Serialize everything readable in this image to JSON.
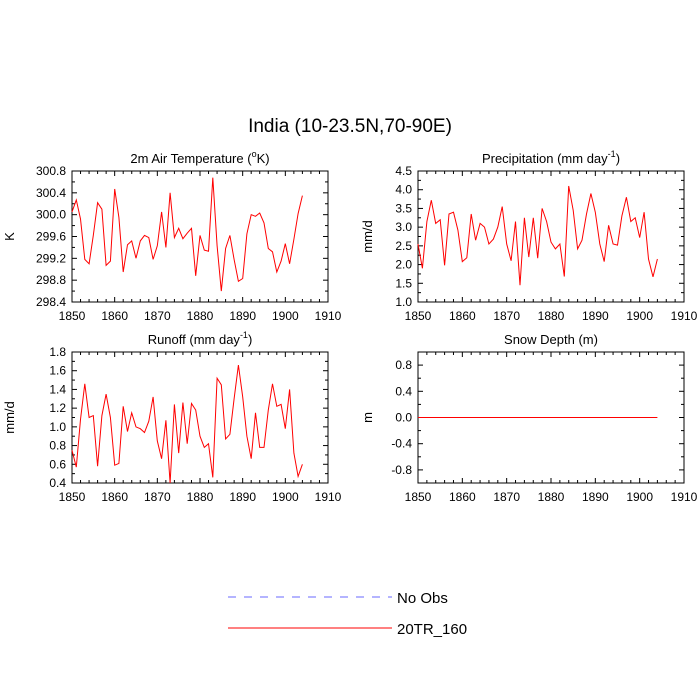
{
  "page": {
    "title": "India (10-23.5N,70-90E)"
  },
  "legend": {
    "items": [
      {
        "label": "No Obs",
        "color": "#6a6aff",
        "style": "dashed"
      },
      {
        "label": "20TR_160",
        "color": "#ff0000",
        "style": "solid"
      }
    ]
  },
  "chart_data": [
    {
      "type": "line",
      "title": "2m Air Temperature (°K)",
      "title_main": "2m Air Temperature (",
      "title_sup": "o",
      "title_end": "K)",
      "xlabel": "",
      "ylabel": "K",
      "xlim": [
        1850,
        1910
      ],
      "ylim": [
        298.4,
        300.8
      ],
      "xticks": [
        1850,
        1860,
        1870,
        1880,
        1890,
        1900,
        1910
      ],
      "yticks": [
        298.4,
        298.8,
        299.2,
        299.6,
        300.0,
        300.4,
        300.8
      ],
      "ytick_labels": [
        "298.4",
        "298.8",
        "299.2",
        "299.6",
        "300.0",
        "300.4",
        "300.8"
      ],
      "series": [
        {
          "name": "20TR_160",
          "color": "#ff0000",
          "x_start": 1850,
          "values": [
            300.05,
            300.27,
            299.92,
            299.18,
            299.1,
            299.62,
            300.22,
            300.1,
            299.07,
            299.15,
            300.47,
            299.95,
            298.95,
            299.45,
            299.52,
            299.2,
            299.52,
            299.62,
            299.58,
            299.18,
            299.43,
            300.05,
            299.4,
            300.4,
            299.58,
            299.75,
            299.56,
            299.66,
            299.75,
            298.88,
            299.62,
            299.35,
            299.33,
            300.68,
            299.43,
            298.6,
            299.38,
            299.62,
            299.18,
            298.78,
            298.83,
            299.65,
            300.0,
            299.97,
            300.03,
            299.85,
            299.38,
            299.32,
            298.95,
            299.15,
            299.47,
            299.1,
            299.55,
            300.02,
            300.35
          ]
        }
      ]
    },
    {
      "type": "line",
      "title": "Precipitation (mm day⁻¹)",
      "title_main": "Precipitation (mm day",
      "title_sup": "-1",
      "title_end": ")",
      "xlabel": "",
      "ylabel": "mm/d",
      "xlim": [
        1850,
        1910
      ],
      "ylim": [
        1.0,
        4.5
      ],
      "xticks": [
        1850,
        1860,
        1870,
        1880,
        1890,
        1900,
        1910
      ],
      "yticks": [
        1.0,
        1.5,
        2.0,
        2.5,
        3.0,
        3.5,
        4.0,
        4.5
      ],
      "ytick_labels": [
        "1.0",
        "1.5",
        "2.0",
        "2.5",
        "3.0",
        "3.5",
        "4.0",
        "4.5"
      ],
      "series": [
        {
          "name": "20TR_160",
          "color": "#ff0000",
          "x_start": 1850,
          "values": [
            2.55,
            1.9,
            3.15,
            3.72,
            3.1,
            3.2,
            1.98,
            3.35,
            3.4,
            2.92,
            2.08,
            2.18,
            3.35,
            2.65,
            3.1,
            3.0,
            2.55,
            2.68,
            3.0,
            3.55,
            2.55,
            2.1,
            3.15,
            1.45,
            3.25,
            2.2,
            3.25,
            2.17,
            3.5,
            3.15,
            2.6,
            2.42,
            2.55,
            1.68,
            4.1,
            3.45,
            2.42,
            2.65,
            3.35,
            3.9,
            3.4,
            2.55,
            2.08,
            3.05,
            2.55,
            2.52,
            3.3,
            3.8,
            3.15,
            3.25,
            2.72,
            3.4,
            2.15,
            1.67,
            2.15
          ]
        }
      ]
    },
    {
      "type": "line",
      "title": "Runoff (mm day⁻¹)",
      "title_main": "Runoff (mm day",
      "title_sup": "-1",
      "title_end": ")",
      "xlabel": "",
      "ylabel": "mm/d",
      "xlim": [
        1850,
        1910
      ],
      "ylim": [
        0.4,
        1.8
      ],
      "xticks": [
        1850,
        1860,
        1870,
        1880,
        1890,
        1900,
        1910
      ],
      "yticks": [
        0.4,
        0.6,
        0.8,
        1.0,
        1.2,
        1.4,
        1.6,
        1.8
      ],
      "ytick_labels": [
        "0.4",
        "0.6",
        "0.8",
        "1.0",
        "1.2",
        "1.4",
        "1.6",
        "1.8"
      ],
      "series": [
        {
          "name": "20TR_160",
          "color": "#ff0000",
          "x_start": 1850,
          "values": [
            0.75,
            0.57,
            1.08,
            1.46,
            1.1,
            1.12,
            0.58,
            1.12,
            1.35,
            1.1,
            0.59,
            0.61,
            1.22,
            0.95,
            1.15,
            1.0,
            0.98,
            0.94,
            1.06,
            1.32,
            0.85,
            0.66,
            1.07,
            0.4,
            1.24,
            0.72,
            1.26,
            0.82,
            1.25,
            1.18,
            0.9,
            0.78,
            0.82,
            0.46,
            1.52,
            1.45,
            0.87,
            0.92,
            1.3,
            1.66,
            1.32,
            0.9,
            0.66,
            1.15,
            0.78,
            0.78,
            1.18,
            1.46,
            1.22,
            1.24,
            0.98,
            1.4,
            0.72,
            0.47,
            0.6
          ]
        }
      ]
    },
    {
      "type": "line",
      "title": "Snow Depth (m)",
      "title_main": "Snow Depth (m)",
      "title_sup": "",
      "title_end": "",
      "xlabel": "",
      "ylabel": "m",
      "xlim": [
        1850,
        1910
      ],
      "ylim": [
        -1.0,
        1.0
      ],
      "xticks": [
        1850,
        1860,
        1870,
        1880,
        1890,
        1900,
        1910
      ],
      "yticks": [
        -0.8,
        -0.4,
        0.0,
        0.4,
        0.8
      ],
      "ytick_labels": [
        "-0.8",
        "-0.4",
        "0.0",
        "0.4",
        "0.8"
      ],
      "series": [
        {
          "name": "20TR_160",
          "color": "#ff0000",
          "x_start": 1850,
          "values": [
            0,
            0,
            0,
            0,
            0,
            0,
            0,
            0,
            0,
            0,
            0,
            0,
            0,
            0,
            0,
            0,
            0,
            0,
            0,
            0,
            0,
            0,
            0,
            0,
            0,
            0,
            0,
            0,
            0,
            0,
            0,
            0,
            0,
            0,
            0,
            0,
            0,
            0,
            0,
            0,
            0,
            0,
            0,
            0,
            0,
            0,
            0,
            0,
            0,
            0,
            0,
            0,
            0,
            0,
            0
          ]
        }
      ]
    }
  ]
}
